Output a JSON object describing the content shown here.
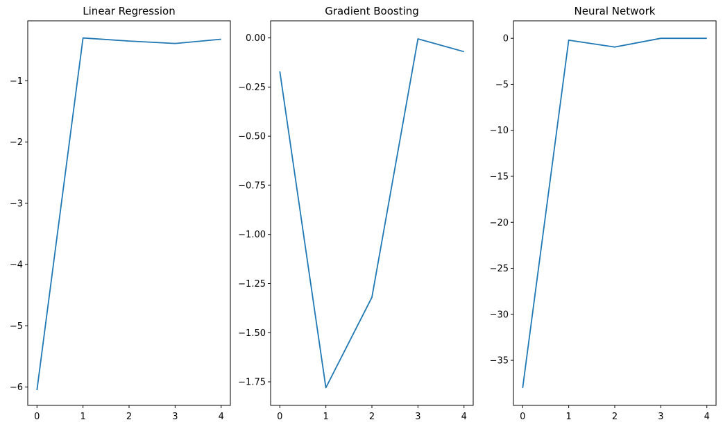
{
  "chart_data": [
    {
      "type": "line",
      "title": "Linear Regression",
      "xlabel": "",
      "ylabel": "",
      "x": [
        0,
        1,
        2,
        3,
        4
      ],
      "series": [
        {
          "values": [
            -6.05,
            -0.3,
            -0.35,
            -0.39,
            -0.32
          ]
        }
      ],
      "xlim": [
        -0.2,
        4.2
      ],
      "ylim": [
        -6.3,
        -0.02
      ],
      "xticks": [
        0,
        1,
        2,
        3,
        4
      ],
      "yticks": [
        -6,
        -5,
        -4,
        -3,
        -2,
        -1
      ],
      "ytick_labels": [
        "−6",
        "−5",
        "−4",
        "−3",
        "−2",
        "−1"
      ],
      "grid": false,
      "color": "#1f77b4"
    },
    {
      "type": "line",
      "title": "Gradient Boosting",
      "xlabel": "",
      "ylabel": "",
      "x": [
        0,
        1,
        2,
        3,
        4
      ],
      "series": [
        {
          "values": [
            -0.17,
            -1.78,
            -1.32,
            -0.005,
            -0.07
          ]
        }
      ],
      "xlim": [
        -0.2,
        4.2
      ],
      "ylim": [
        -1.87,
        0.087
      ],
      "xticks": [
        0,
        1,
        2,
        3,
        4
      ],
      "yticks": [
        0,
        -0.25,
        -0.5,
        -0.75,
        -1,
        -1.25,
        -1.5,
        -1.75
      ],
      "ytick_labels": [
        "0.00",
        "−0.25",
        "−0.50",
        "−0.75",
        "−1.00",
        "−1.25",
        "−1.50",
        "−1.75"
      ],
      "grid": false,
      "color": "#1f77b4"
    },
    {
      "type": "line",
      "title": "Neural Network",
      "xlabel": "",
      "ylabel": "",
      "x": [
        0,
        1,
        2,
        3,
        4
      ],
      "series": [
        {
          "values": [
            -38,
            -0.2,
            -0.95,
            0,
            0
          ]
        }
      ],
      "xlim": [
        -0.2,
        4.2
      ],
      "ylim": [
        -39.9,
        1.9
      ],
      "xticks": [
        0,
        1,
        2,
        3,
        4
      ],
      "yticks": [
        0,
        -5,
        -10,
        -15,
        -20,
        -25,
        -30,
        -35
      ],
      "ytick_labels": [
        "0",
        "−5",
        "−10",
        "−15",
        "−20",
        "−25",
        "−30",
        "−35"
      ],
      "grid": false,
      "color": "#1f77b4"
    }
  ]
}
